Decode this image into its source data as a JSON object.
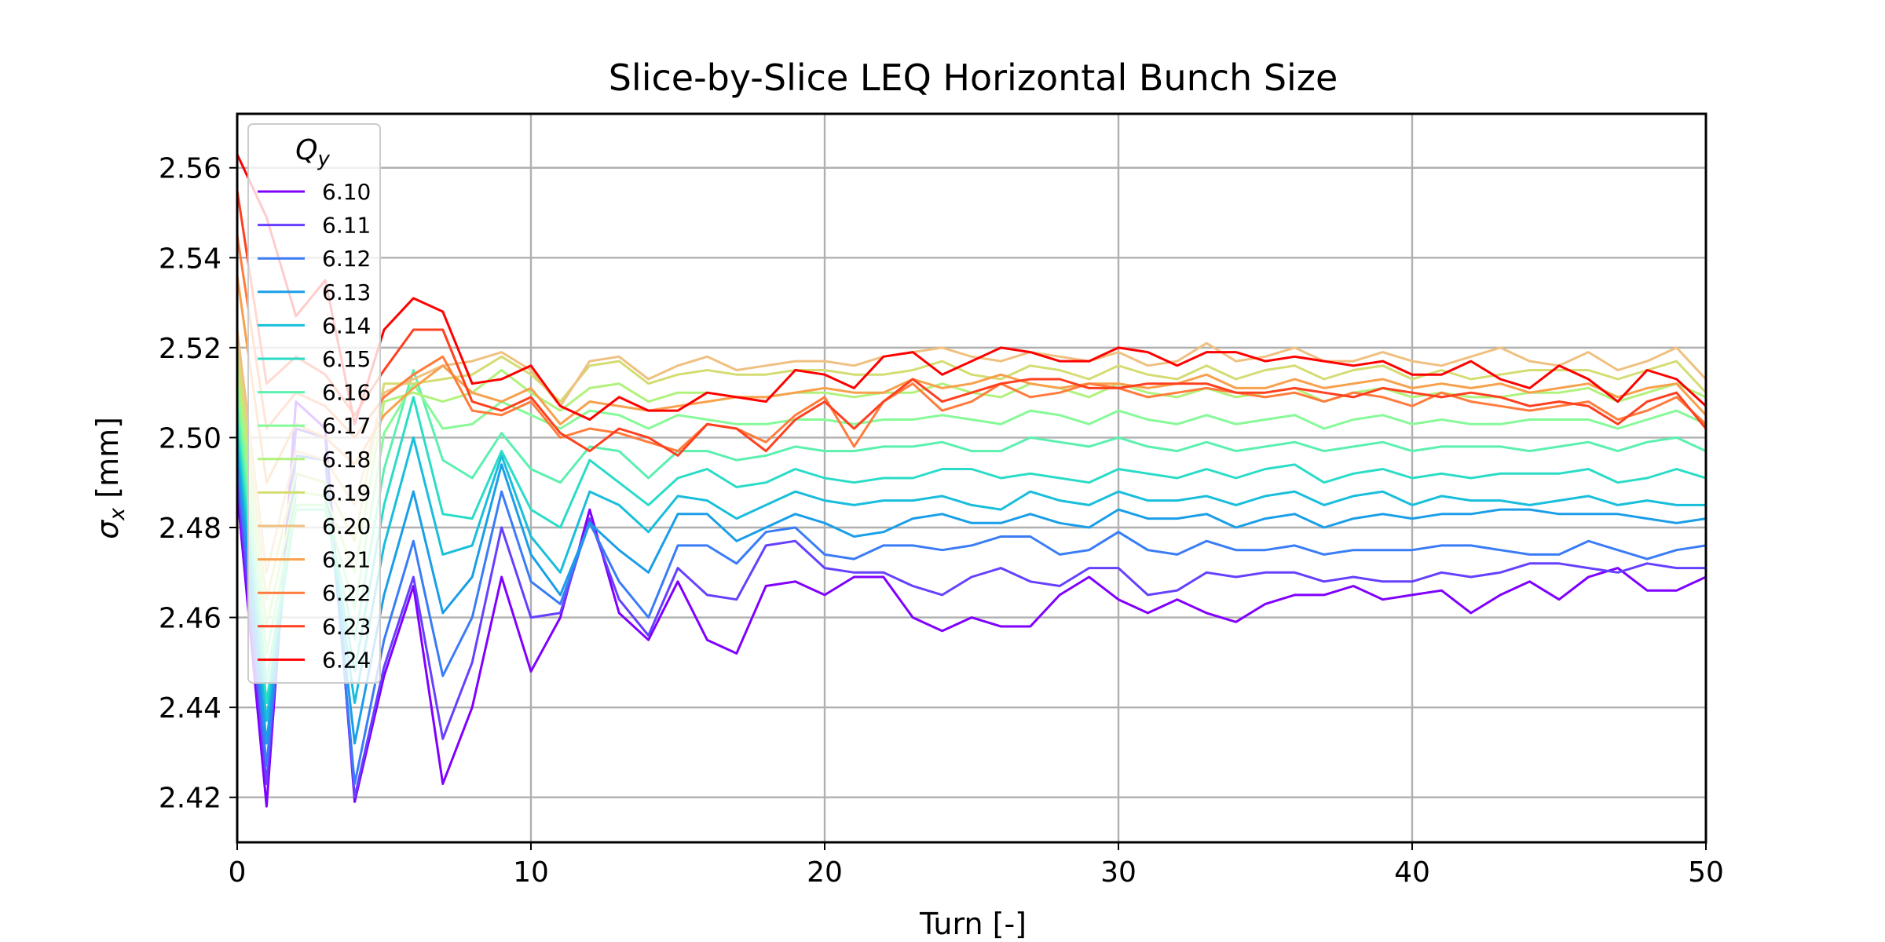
{
  "chart_data": {
    "type": "line",
    "title": "Slice-by-Slice LEQ Horizontal Bunch Size",
    "xlabel": "Turn [-]",
    "ylabel_symbol": "σ",
    "ylabel_sub": "x",
    "ylabel_unit": "[mm]",
    "xlim": [
      0,
      50
    ],
    "ylim": [
      2.41,
      2.572
    ],
    "xticks": [
      0,
      10,
      20,
      30,
      40,
      50
    ],
    "yticks": [
      2.42,
      2.44,
      2.46,
      2.48,
      2.5,
      2.52,
      2.54,
      2.56
    ],
    "grid": true,
    "legend": {
      "title_symbol": "Q",
      "title_sub": "y",
      "placement": "upper-left"
    },
    "series": [
      {
        "name": "6.10",
        "color": "#8000ff",
        "values": [
          2.488,
          2.418,
          2.508,
          2.502,
          2.419,
          2.447,
          2.467,
          2.423,
          2.44,
          2.469,
          2.448,
          2.46,
          2.484,
          2.461,
          2.455,
          2.468,
          2.455,
          2.452,
          2.467,
          2.468,
          2.465,
          2.469,
          2.469,
          2.46,
          2.457,
          2.46,
          2.458,
          2.458,
          2.465,
          2.469,
          2.464,
          2.461,
          2.464,
          2.461,
          2.459,
          2.463,
          2.465,
          2.465,
          2.467,
          2.464,
          2.465,
          2.466,
          2.461,
          2.465,
          2.468,
          2.464,
          2.469,
          2.471,
          2.466,
          2.466,
          2.469
        ]
      },
      {
        "name": "6.11",
        "color": "#6640fe",
        "values": [
          2.491,
          2.423,
          2.502,
          2.5,
          2.42,
          2.449,
          2.469,
          2.433,
          2.45,
          2.48,
          2.46,
          2.461,
          2.482,
          2.464,
          2.456,
          2.471,
          2.465,
          2.464,
          2.476,
          2.477,
          2.471,
          2.47,
          2.47,
          2.467,
          2.465,
          2.469,
          2.471,
          2.468,
          2.467,
          2.471,
          2.471,
          2.465,
          2.466,
          2.47,
          2.469,
          2.47,
          2.47,
          2.468,
          2.469,
          2.468,
          2.468,
          2.47,
          2.469,
          2.47,
          2.472,
          2.472,
          2.471,
          2.47,
          2.472,
          2.471,
          2.471
        ]
      },
      {
        "name": "6.12",
        "color": "#3a7cf6",
        "values": [
          2.495,
          2.427,
          2.496,
          2.495,
          2.423,
          2.455,
          2.477,
          2.447,
          2.46,
          2.488,
          2.468,
          2.463,
          2.481,
          2.468,
          2.46,
          2.476,
          2.476,
          2.472,
          2.479,
          2.48,
          2.474,
          2.473,
          2.476,
          2.476,
          2.475,
          2.476,
          2.478,
          2.478,
          2.474,
          2.475,
          2.479,
          2.475,
          2.474,
          2.477,
          2.475,
          2.475,
          2.476,
          2.474,
          2.475,
          2.475,
          2.475,
          2.476,
          2.476,
          2.475,
          2.474,
          2.474,
          2.477,
          2.475,
          2.473,
          2.475,
          2.476
        ]
      },
      {
        "name": "6.13",
        "color": "#1a9ee8",
        "values": [
          2.499,
          2.432,
          2.492,
          2.49,
          2.432,
          2.465,
          2.488,
          2.461,
          2.469,
          2.494,
          2.474,
          2.465,
          2.481,
          2.475,
          2.47,
          2.483,
          2.483,
          2.477,
          2.48,
          2.483,
          2.481,
          2.478,
          2.479,
          2.482,
          2.483,
          2.481,
          2.481,
          2.483,
          2.481,
          2.48,
          2.484,
          2.482,
          2.482,
          2.483,
          2.48,
          2.482,
          2.483,
          2.48,
          2.482,
          2.483,
          2.482,
          2.483,
          2.483,
          2.484,
          2.484,
          2.483,
          2.483,
          2.483,
          2.482,
          2.481,
          2.482
        ]
      },
      {
        "name": "6.14",
        "color": "#18bedb",
        "values": [
          2.502,
          2.437,
          2.488,
          2.487,
          2.441,
          2.476,
          2.5,
          2.474,
          2.476,
          2.496,
          2.478,
          2.47,
          2.488,
          2.485,
          2.479,
          2.487,
          2.486,
          2.482,
          2.485,
          2.488,
          2.486,
          2.485,
          2.486,
          2.486,
          2.487,
          2.485,
          2.484,
          2.488,
          2.486,
          2.485,
          2.488,
          2.486,
          2.486,
          2.487,
          2.485,
          2.487,
          2.488,
          2.485,
          2.487,
          2.488,
          2.485,
          2.487,
          2.486,
          2.486,
          2.485,
          2.486,
          2.487,
          2.485,
          2.486,
          2.485,
          2.485
        ]
      },
      {
        "name": "6.15",
        "color": "#2adcc7",
        "values": [
          2.505,
          2.441,
          2.485,
          2.485,
          2.448,
          2.485,
          2.509,
          2.483,
          2.482,
          2.497,
          2.484,
          2.48,
          2.495,
          2.49,
          2.485,
          2.491,
          2.493,
          2.489,
          2.49,
          2.493,
          2.491,
          2.49,
          2.491,
          2.491,
          2.493,
          2.493,
          2.491,
          2.492,
          2.491,
          2.49,
          2.493,
          2.492,
          2.491,
          2.493,
          2.491,
          2.493,
          2.494,
          2.49,
          2.492,
          2.493,
          2.491,
          2.492,
          2.491,
          2.492,
          2.492,
          2.492,
          2.493,
          2.49,
          2.491,
          2.493,
          2.491
        ]
      },
      {
        "name": "6.16",
        "color": "#5cf0b0",
        "values": [
          2.508,
          2.446,
          2.484,
          2.484,
          2.455,
          2.493,
          2.515,
          2.495,
          2.491,
          2.501,
          2.493,
          2.49,
          2.498,
          2.497,
          2.491,
          2.497,
          2.497,
          2.495,
          2.496,
          2.498,
          2.497,
          2.497,
          2.498,
          2.498,
          2.499,
          2.497,
          2.497,
          2.5,
          2.499,
          2.498,
          2.5,
          2.498,
          2.497,
          2.499,
          2.497,
          2.498,
          2.499,
          2.497,
          2.498,
          2.499,
          2.497,
          2.498,
          2.498,
          2.498,
          2.497,
          2.498,
          2.499,
          2.497,
          2.499,
          2.5,
          2.497
        ]
      },
      {
        "name": "6.17",
        "color": "#86fa98",
        "values": [
          2.512,
          2.452,
          2.485,
          2.485,
          2.462,
          2.501,
          2.512,
          2.502,
          2.503,
          2.508,
          2.505,
          2.502,
          2.506,
          2.505,
          2.502,
          2.505,
          2.504,
          2.503,
          2.503,
          2.504,
          2.504,
          2.503,
          2.504,
          2.504,
          2.505,
          2.504,
          2.503,
          2.506,
          2.505,
          2.503,
          2.506,
          2.504,
          2.503,
          2.505,
          2.503,
          2.504,
          2.505,
          2.502,
          2.504,
          2.505,
          2.503,
          2.504,
          2.503,
          2.503,
          2.504,
          2.504,
          2.504,
          2.502,
          2.504,
          2.506,
          2.503
        ]
      },
      {
        "name": "6.18",
        "color": "#b0f27c",
        "values": [
          2.516,
          2.458,
          2.488,
          2.487,
          2.47,
          2.508,
          2.51,
          2.508,
          2.51,
          2.515,
          2.51,
          2.506,
          2.511,
          2.512,
          2.508,
          2.51,
          2.51,
          2.509,
          2.509,
          2.51,
          2.51,
          2.509,
          2.51,
          2.51,
          2.512,
          2.51,
          2.509,
          2.512,
          2.511,
          2.509,
          2.512,
          2.51,
          2.509,
          2.511,
          2.509,
          2.51,
          2.511,
          2.508,
          2.51,
          2.511,
          2.509,
          2.51,
          2.509,
          2.509,
          2.51,
          2.51,
          2.511,
          2.508,
          2.51,
          2.512,
          2.509
        ]
      },
      {
        "name": "6.19",
        "color": "#d4dc72",
        "values": [
          2.52,
          2.464,
          2.492,
          2.49,
          2.477,
          2.512,
          2.512,
          2.513,
          2.514,
          2.518,
          2.514,
          2.508,
          2.516,
          2.517,
          2.512,
          2.514,
          2.515,
          2.514,
          2.514,
          2.515,
          2.515,
          2.514,
          2.514,
          2.515,
          2.517,
          2.514,
          2.513,
          2.516,
          2.515,
          2.513,
          2.516,
          2.514,
          2.513,
          2.516,
          2.513,
          2.515,
          2.516,
          2.513,
          2.515,
          2.516,
          2.513,
          2.515,
          2.513,
          2.514,
          2.515,
          2.515,
          2.515,
          2.513,
          2.515,
          2.517,
          2.51
        ]
      },
      {
        "name": "6.20",
        "color": "#f0c080",
        "values": [
          2.524,
          2.47,
          2.497,
          2.495,
          2.485,
          2.51,
          2.513,
          2.516,
          2.517,
          2.519,
          2.515,
          2.507,
          2.517,
          2.518,
          2.513,
          2.516,
          2.518,
          2.515,
          2.516,
          2.517,
          2.517,
          2.516,
          2.518,
          2.519,
          2.52,
          2.518,
          2.517,
          2.519,
          2.518,
          2.517,
          2.519,
          2.516,
          2.517,
          2.521,
          2.517,
          2.518,
          2.52,
          2.517,
          2.517,
          2.519,
          2.517,
          2.516,
          2.518,
          2.52,
          2.517,
          2.516,
          2.519,
          2.515,
          2.517,
          2.52,
          2.513
        ]
      },
      {
        "name": "6.21",
        "color": "#f8a04c",
        "values": [
          2.536,
          2.49,
          2.503,
          2.5,
          2.494,
          2.505,
          2.511,
          2.516,
          2.51,
          2.508,
          2.511,
          2.503,
          2.508,
          2.507,
          2.506,
          2.507,
          2.508,
          2.509,
          2.509,
          2.51,
          2.511,
          2.51,
          2.51,
          2.513,
          2.511,
          2.512,
          2.514,
          2.512,
          2.511,
          2.512,
          2.512,
          2.511,
          2.512,
          2.514,
          2.511,
          2.511,
          2.513,
          2.511,
          2.512,
          2.513,
          2.511,
          2.512,
          2.511,
          2.512,
          2.51,
          2.511,
          2.512,
          2.509,
          2.511,
          2.512,
          2.505
        ]
      },
      {
        "name": "6.22",
        "color": "#ff7c3c",
        "values": [
          2.545,
          2.502,
          2.51,
          2.507,
          2.5,
          2.509,
          2.514,
          2.518,
          2.506,
          2.505,
          2.508,
          2.5,
          2.502,
          2.501,
          2.499,
          2.497,
          2.503,
          2.502,
          2.499,
          2.505,
          2.509,
          2.498,
          2.508,
          2.512,
          2.506,
          2.508,
          2.512,
          2.509,
          2.51,
          2.512,
          2.511,
          2.509,
          2.51,
          2.511,
          2.51,
          2.509,
          2.51,
          2.508,
          2.51,
          2.509,
          2.507,
          2.51,
          2.508,
          2.507,
          2.506,
          2.507,
          2.508,
          2.504,
          2.506,
          2.509,
          2.503
        ]
      },
      {
        "name": "6.23",
        "color": "#ff4020",
        "values": [
          2.555,
          2.512,
          2.518,
          2.514,
          2.505,
          2.515,
          2.524,
          2.524,
          2.508,
          2.506,
          2.509,
          2.501,
          2.497,
          2.502,
          2.5,
          2.496,
          2.503,
          2.502,
          2.497,
          2.504,
          2.508,
          2.502,
          2.508,
          2.513,
          2.508,
          2.51,
          2.512,
          2.513,
          2.513,
          2.511,
          2.511,
          2.512,
          2.512,
          2.512,
          2.51,
          2.51,
          2.511,
          2.51,
          2.509,
          2.511,
          2.51,
          2.509,
          2.51,
          2.509,
          2.507,
          2.508,
          2.507,
          2.503,
          2.508,
          2.51,
          2.502
        ]
      },
      {
        "name": "6.24",
        "color": "#ff0000",
        "values": [
          2.563,
          2.549,
          2.527,
          2.535,
          2.503,
          2.524,
          2.531,
          2.528,
          2.512,
          2.513,
          2.516,
          2.507,
          2.504,
          2.509,
          2.506,
          2.506,
          2.51,
          2.509,
          2.508,
          2.515,
          2.514,
          2.511,
          2.518,
          2.519,
          2.514,
          2.517,
          2.52,
          2.519,
          2.517,
          2.517,
          2.52,
          2.519,
          2.516,
          2.519,
          2.519,
          2.517,
          2.518,
          2.517,
          2.516,
          2.517,
          2.514,
          2.514,
          2.517,
          2.513,
          2.511,
          2.516,
          2.513,
          2.508,
          2.515,
          2.513,
          2.507
        ]
      }
    ]
  }
}
